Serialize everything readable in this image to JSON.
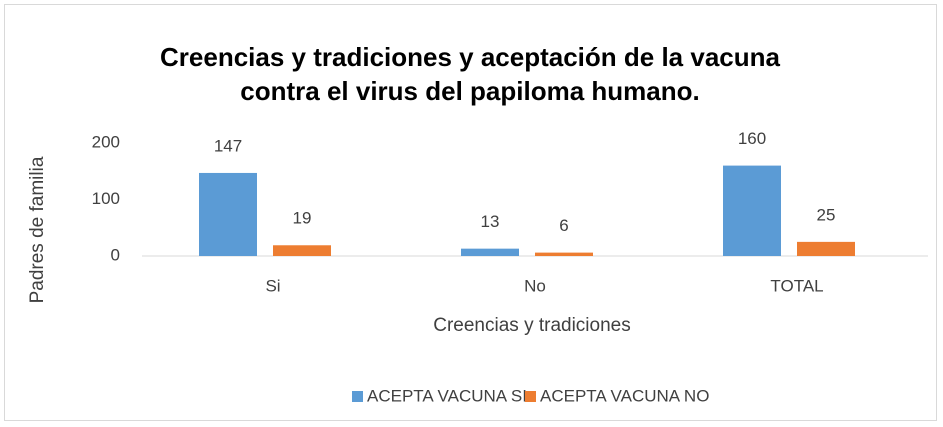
{
  "chart_data": {
    "type": "bar",
    "title": "Creencias y tradiciones y aceptación de la vacuna contra el virus del papiloma humano.",
    "x_label": "Creencias y tradiciones",
    "y_label": "Padres de familia",
    "categories": [
      "Si",
      "No",
      "TOTAL"
    ],
    "series": [
      {
        "name": "ACEPTA VACUNA SI",
        "color": "#5b9bd5",
        "values": [
          147,
          13,
          160
        ]
      },
      {
        "name": "ACEPTA VACUNA NO",
        "color": "#ed7d31",
        "values": [
          19,
          6,
          25
        ]
      }
    ],
    "ylim": [
      0,
      200
    ],
    "yticks": [
      0,
      100,
      200
    ],
    "grid": false,
    "legend": "bottom"
  }
}
